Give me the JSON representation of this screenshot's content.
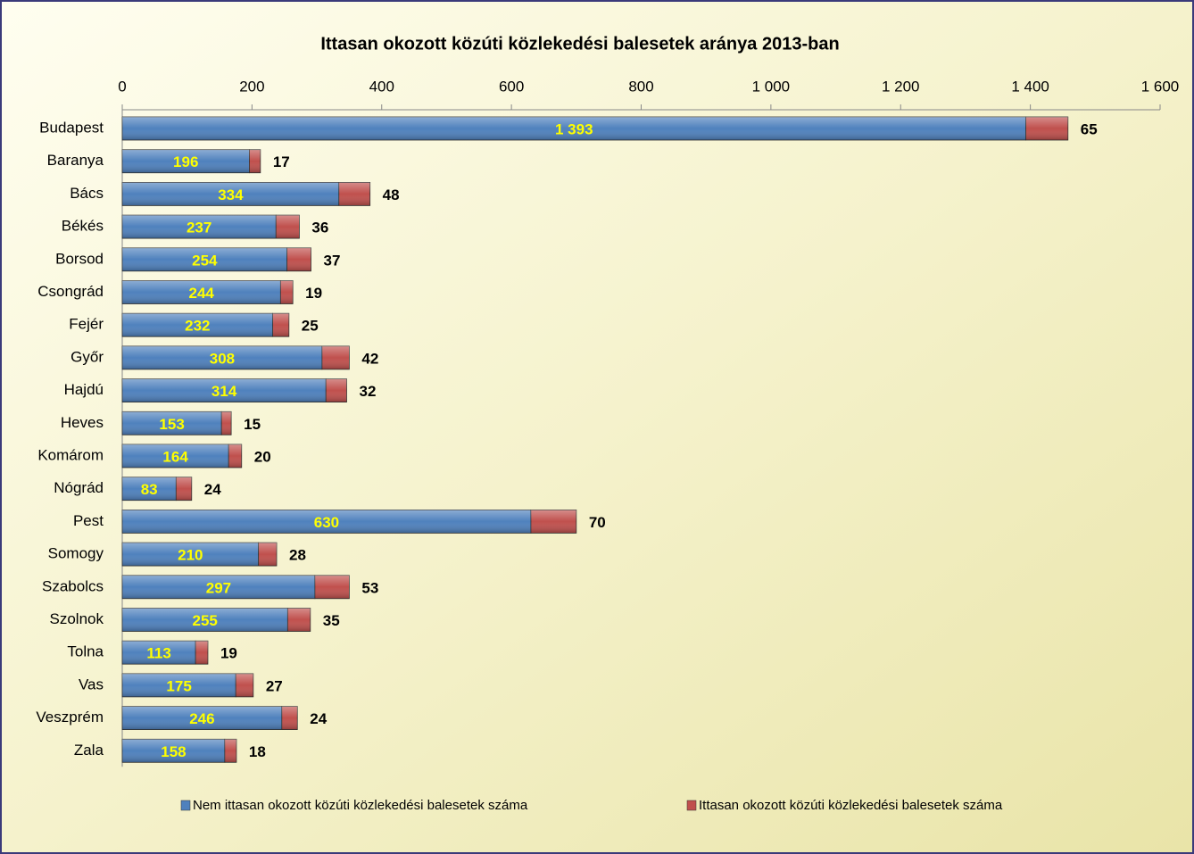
{
  "chart_data": {
    "type": "stacked-bar-horizontal",
    "title": "Ittasan okozott közúti közlekedési balesetek aránya 2013-ban",
    "categories": [
      "Budapest",
      "Baranya",
      "Bács",
      "Békés",
      "Borsod",
      "Csongrád",
      "Fejér",
      "Győr",
      "Hajdú",
      "Heves",
      "Komárom",
      "Nógrád",
      "Pest",
      "Somogy",
      "Szabolcs",
      "Szolnok",
      "Tolna",
      "Vas",
      "Veszprém",
      "Zala"
    ],
    "series": [
      {
        "name": "Nem ittasan okozott közúti közlekedési balesetek száma",
        "color": "#4f81bd",
        "values": [
          1393,
          196,
          334,
          237,
          254,
          244,
          232,
          308,
          314,
          153,
          164,
          83,
          630,
          210,
          297,
          255,
          113,
          175,
          246,
          158
        ],
        "value_labels": [
          "1 393",
          "196",
          "334",
          "237",
          "254",
          "244",
          "232",
          "308",
          "314",
          "153",
          "164",
          "83",
          "630",
          "210",
          "297",
          "255",
          "113",
          "175",
          "246",
          "158"
        ]
      },
      {
        "name": "Ittasan okozott közúti közlekedési balesetek száma",
        "color": "#c0504d",
        "values": [
          65,
          17,
          48,
          36,
          37,
          19,
          25,
          42,
          32,
          15,
          20,
          24,
          70,
          28,
          53,
          35,
          19,
          27,
          24,
          18
        ]
      }
    ],
    "xlim": [
      0,
      1600
    ],
    "xticks": [
      0,
      200,
      400,
      600,
      800,
      {
        "value": 1000,
        "label": "1 000"
      },
      {
        "value": 1200,
        "label": "1 200"
      },
      {
        "value": 1400,
        "label": "1 400"
      },
      {
        "value": 1600,
        "label": "1 600"
      }
    ]
  }
}
